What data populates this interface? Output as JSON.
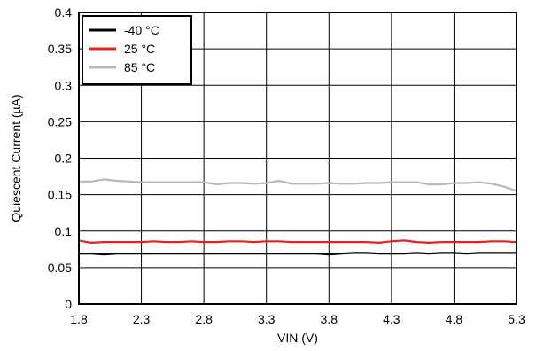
{
  "chart_data": {
    "type": "line",
    "xlabel": "VIN (V)",
    "ylabel": "Quiescent Current (µA)",
    "xlim": [
      1.8,
      5.3
    ],
    "ylim": [
      0,
      0.4
    ],
    "x_ticks": [
      "1.8",
      "2.3",
      "2.8",
      "3.3",
      "3.8",
      "4.3",
      "4.8",
      "5.3"
    ],
    "y_ticks": [
      "0",
      "0.05",
      "0.1",
      "0.15",
      "0.2",
      "0.25",
      "0.3",
      "0.35",
      "0.4"
    ],
    "grid": true,
    "legend_position": "top-left",
    "x": [
      1.8,
      1.9,
      2.0,
      2.1,
      2.2,
      2.3,
      2.4,
      2.5,
      2.6,
      2.7,
      2.8,
      2.9,
      3.0,
      3.1,
      3.2,
      3.3,
      3.4,
      3.5,
      3.6,
      3.7,
      3.8,
      3.9,
      4.0,
      4.1,
      4.2,
      4.3,
      4.4,
      4.5,
      4.6,
      4.7,
      4.8,
      4.9,
      5.0,
      5.1,
      5.2,
      5.3
    ],
    "series": [
      {
        "name": "-40 °C",
        "color": "#000000",
        "values": [
          0.069,
          0.069,
          0.068,
          0.069,
          0.069,
          0.069,
          0.069,
          0.069,
          0.069,
          0.069,
          0.069,
          0.069,
          0.069,
          0.069,
          0.069,
          0.069,
          0.069,
          0.069,
          0.069,
          0.069,
          0.068,
          0.069,
          0.07,
          0.07,
          0.069,
          0.069,
          0.069,
          0.07,
          0.069,
          0.07,
          0.07,
          0.069,
          0.07,
          0.07,
          0.07,
          0.07
        ]
      },
      {
        "name": "25 °C",
        "color": "#e8201e",
        "values": [
          0.087,
          0.084,
          0.085,
          0.085,
          0.085,
          0.085,
          0.086,
          0.085,
          0.085,
          0.086,
          0.085,
          0.085,
          0.086,
          0.086,
          0.085,
          0.086,
          0.086,
          0.085,
          0.085,
          0.085,
          0.085,
          0.085,
          0.085,
          0.085,
          0.084,
          0.086,
          0.087,
          0.085,
          0.084,
          0.085,
          0.085,
          0.085,
          0.085,
          0.086,
          0.086,
          0.085
        ]
      },
      {
        "name": "85 °C",
        "color": "#b8b8b8",
        "values": [
          0.168,
          0.168,
          0.171,
          0.169,
          0.168,
          0.167,
          0.167,
          0.167,
          0.167,
          0.167,
          0.167,
          0.164,
          0.166,
          0.166,
          0.165,
          0.166,
          0.169,
          0.165,
          0.165,
          0.165,
          0.166,
          0.165,
          0.165,
          0.166,
          0.166,
          0.167,
          0.167,
          0.167,
          0.164,
          0.164,
          0.166,
          0.166,
          0.167,
          0.165,
          0.161,
          0.155
        ]
      }
    ]
  }
}
